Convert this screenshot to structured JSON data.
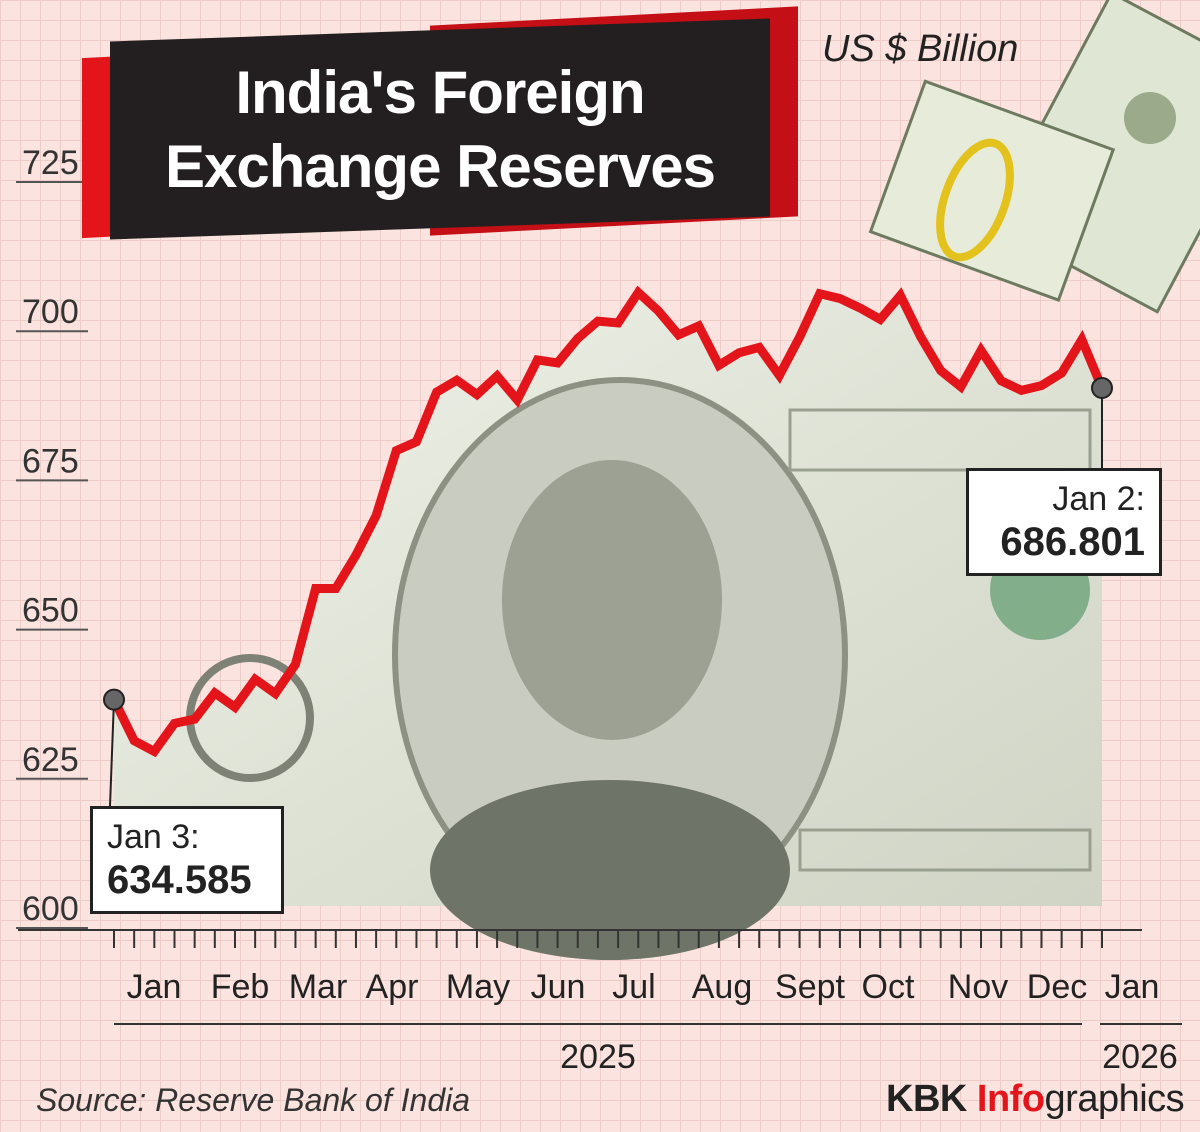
{
  "title": "India's Foreign Exchange Reserves",
  "unit_label": "US $ Billion",
  "source": "Source: Reserve Bank of India",
  "brand": {
    "part1": "KBK ",
    "part2": "Info",
    "part3": "graphics"
  },
  "colors": {
    "line": "#e3151b",
    "background": "#fbe3df",
    "grid": "#e9c3be"
  },
  "callouts": {
    "start": {
      "label": "Jan 3:",
      "value": "634.585"
    },
    "end": {
      "label": "Jan 2:",
      "value": "686.801"
    }
  },
  "chart_data": {
    "type": "line",
    "title": "India's Foreign Exchange Reserves",
    "ylabel": "US $ Billion",
    "ylim": [
      600,
      725
    ],
    "yticks": [
      600,
      625,
      650,
      675,
      700,
      725
    ],
    "months": [
      "Jan",
      "Feb",
      "Mar",
      "Apr",
      "May",
      "Jun",
      "Jul",
      "Aug",
      "Sept",
      "Oct",
      "Nov",
      "Dec",
      "Jan"
    ],
    "years": [
      "2025",
      "2026"
    ],
    "grid": true,
    "series": [
      {
        "values": [
          634.585,
          627.7,
          625.9,
          630.6,
          631.3,
          635.7,
          633.3,
          638.0,
          635.6,
          640.5,
          653.2,
          653.2,
          658.8,
          665.4,
          676.3,
          677.8,
          686.1,
          688.1,
          685.7,
          688.8,
          684.8,
          691.5,
          691.0,
          695.1,
          698.0,
          697.7,
          702.8,
          699.7,
          695.7,
          697.2,
          690.6,
          692.7,
          693.6,
          688.9,
          695.3,
          702.6,
          701.8,
          700.2,
          698.3,
          702.3,
          695.4,
          689.7,
          687.0,
          693.1,
          688.0,
          686.4,
          687.2,
          689.3,
          694.9,
          686.801
        ]
      }
    ]
  }
}
